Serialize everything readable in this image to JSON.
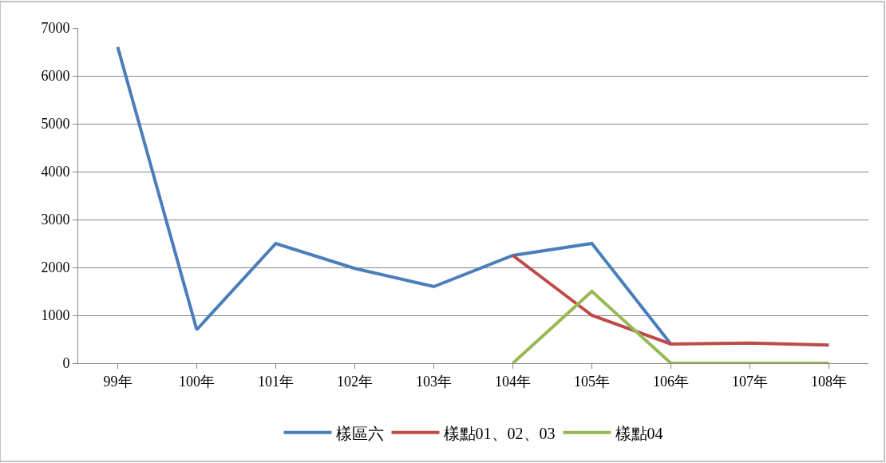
{
  "chart_data": {
    "type": "line",
    "categories": [
      "99年",
      "100年",
      "101年",
      "102年",
      "103年",
      "104年",
      "105年",
      "106年",
      "107年",
      "108年"
    ],
    "series": [
      {
        "name": "樣區六",
        "color": "#4a7ebb",
        "values": [
          6600,
          700,
          2500,
          1980,
          1600,
          2250,
          2500,
          400,
          null,
          null
        ]
      },
      {
        "name": "樣點01、02、03",
        "color": "#be4b48",
        "values": [
          null,
          null,
          null,
          null,
          null,
          2250,
          1000,
          400,
          420,
          380
        ]
      },
      {
        "name": "樣點04",
        "color": "#98b954",
        "values": [
          null,
          null,
          null,
          null,
          null,
          0,
          1500,
          0,
          0,
          0
        ]
      }
    ],
    "ylim": [
      0,
      7000
    ],
    "yticks": [
      0,
      1000,
      2000,
      3000,
      4000,
      5000,
      6000,
      7000
    ],
    "grid": "y",
    "legend": "bottom",
    "marker": "none",
    "line_style": "solid"
  }
}
